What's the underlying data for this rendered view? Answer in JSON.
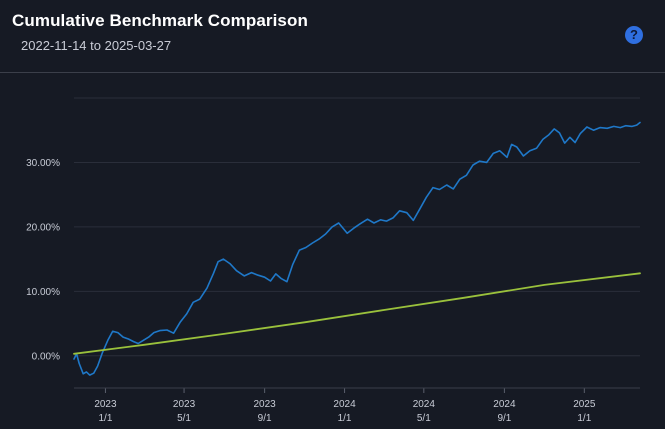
{
  "header": {
    "title": "Cumulative Benchmark Comparison",
    "subtitle": "2022-11-14 to 2025-03-27",
    "help_label": "?"
  },
  "colors": {
    "background": "#161a24",
    "grid": "#2a2e3a",
    "series_blue": "#1f78c8",
    "series_green": "#9ac13c"
  },
  "chart_data": {
    "type": "line",
    "title": "Cumulative Benchmark Comparison",
    "subtitle": "2022-11-14 to 2025-03-27",
    "xlabel": "",
    "ylabel": "",
    "x_range": [
      "2022-11-14",
      "2025-03-27"
    ],
    "ylim": [
      -5,
      40
    ],
    "y_ticks": [
      0,
      10,
      20,
      30
    ],
    "y_tick_labels": [
      "0.00%",
      "10.00%",
      "20.00%",
      "30.00%"
    ],
    "x_ticks": [
      {
        "date": "2023-01-01",
        "line1": "2023",
        "line2": "1/1"
      },
      {
        "date": "2023-05-01",
        "line1": "2023",
        "line2": "5/1"
      },
      {
        "date": "2023-09-01",
        "line1": "2023",
        "line2": "9/1"
      },
      {
        "date": "2024-01-01",
        "line1": "2024",
        "line2": "1/1"
      },
      {
        "date": "2024-05-01",
        "line1": "2024",
        "line2": "5/1"
      },
      {
        "date": "2024-09-01",
        "line1": "2024",
        "line2": "9/1"
      },
      {
        "date": "2025-01-01",
        "line1": "2025",
        "line2": "1/1"
      }
    ],
    "grid": true,
    "legend": "none",
    "series": [
      {
        "color": "#1f78c8",
        "points": [
          [
            "2022-11-14",
            -0.5
          ],
          [
            "2022-11-18",
            0.3
          ],
          [
            "2022-11-22",
            -1.2
          ],
          [
            "2022-11-28",
            -2.8
          ],
          [
            "2022-12-03",
            -2.5
          ],
          [
            "2022-12-08",
            -3.0
          ],
          [
            "2022-12-14",
            -2.7
          ],
          [
            "2022-12-20",
            -1.6
          ],
          [
            "2022-12-27",
            0.4
          ],
          [
            "2023-01-05",
            2.5
          ],
          [
            "2023-01-12",
            3.8
          ],
          [
            "2023-01-20",
            3.6
          ],
          [
            "2023-01-28",
            2.9
          ],
          [
            "2023-02-05",
            2.6
          ],
          [
            "2023-02-13",
            2.2
          ],
          [
            "2023-02-20",
            1.9
          ],
          [
            "2023-02-28",
            2.4
          ],
          [
            "2023-03-08",
            2.9
          ],
          [
            "2023-03-16",
            3.6
          ],
          [
            "2023-03-25",
            3.9
          ],
          [
            "2023-04-05",
            4.0
          ],
          [
            "2023-04-15",
            3.5
          ],
          [
            "2023-04-25",
            5.2
          ],
          [
            "2023-05-05",
            6.5
          ],
          [
            "2023-05-15",
            8.3
          ],
          [
            "2023-05-25",
            8.8
          ],
          [
            "2023-06-05",
            10.5
          ],
          [
            "2023-06-15",
            12.8
          ],
          [
            "2023-06-22",
            14.6
          ],
          [
            "2023-06-30",
            15.0
          ],
          [
            "2023-07-10",
            14.3
          ],
          [
            "2023-07-20",
            13.2
          ],
          [
            "2023-08-01",
            12.4
          ],
          [
            "2023-08-12",
            12.9
          ],
          [
            "2023-08-22",
            12.5
          ],
          [
            "2023-09-01",
            12.2
          ],
          [
            "2023-09-10",
            11.6
          ],
          [
            "2023-09-18",
            12.7
          ],
          [
            "2023-09-26",
            12.0
          ],
          [
            "2023-10-05",
            11.5
          ],
          [
            "2023-10-14",
            14.2
          ],
          [
            "2023-10-24",
            16.4
          ],
          [
            "2023-11-03",
            16.8
          ],
          [
            "2023-11-13",
            17.5
          ],
          [
            "2023-11-23",
            18.1
          ],
          [
            "2023-12-03",
            18.9
          ],
          [
            "2023-12-13",
            20.0
          ],
          [
            "2023-12-23",
            20.6
          ],
          [
            "2024-01-05",
            19.0
          ],
          [
            "2024-01-15",
            19.8
          ],
          [
            "2024-01-25",
            20.5
          ],
          [
            "2024-02-05",
            21.2
          ],
          [
            "2024-02-15",
            20.6
          ],
          [
            "2024-02-25",
            21.1
          ],
          [
            "2024-03-05",
            20.9
          ],
          [
            "2024-03-15",
            21.4
          ],
          [
            "2024-03-25",
            22.5
          ],
          [
            "2024-04-05",
            22.2
          ],
          [
            "2024-04-15",
            21.0
          ],
          [
            "2024-04-25",
            22.8
          ],
          [
            "2024-05-05",
            24.6
          ],
          [
            "2024-05-15",
            26.1
          ],
          [
            "2024-05-25",
            25.8
          ],
          [
            "2024-06-05",
            26.5
          ],
          [
            "2024-06-15",
            25.9
          ],
          [
            "2024-06-25",
            27.4
          ],
          [
            "2024-07-05",
            28.0
          ],
          [
            "2024-07-15",
            29.6
          ],
          [
            "2024-07-25",
            30.2
          ],
          [
            "2024-08-05",
            30.0
          ],
          [
            "2024-08-15",
            31.4
          ],
          [
            "2024-08-25",
            31.8
          ],
          [
            "2024-09-05",
            30.8
          ],
          [
            "2024-09-12",
            32.8
          ],
          [
            "2024-09-20",
            32.4
          ],
          [
            "2024-09-30",
            31.0
          ],
          [
            "2024-10-10",
            31.8
          ],
          [
            "2024-10-20",
            32.2
          ],
          [
            "2024-10-30",
            33.6
          ],
          [
            "2024-11-08",
            34.3
          ],
          [
            "2024-11-16",
            35.2
          ],
          [
            "2024-11-24",
            34.6
          ],
          [
            "2024-12-02",
            33.0
          ],
          [
            "2024-12-10",
            33.9
          ],
          [
            "2024-12-18",
            33.1
          ],
          [
            "2024-12-26",
            34.5
          ],
          [
            "2025-01-05",
            35.5
          ],
          [
            "2025-01-15",
            35.0
          ],
          [
            "2025-01-25",
            35.4
          ],
          [
            "2025-02-05",
            35.3
          ],
          [
            "2025-02-15",
            35.6
          ],
          [
            "2025-02-25",
            35.4
          ],
          [
            "2025-03-05",
            35.7
          ],
          [
            "2025-03-15",
            35.6
          ],
          [
            "2025-03-22",
            35.8
          ],
          [
            "2025-03-27",
            36.2
          ]
        ]
      },
      {
        "color": "#9ac13c",
        "points": [
          [
            "2022-11-14",
            0.3
          ],
          [
            "2023-03-01",
            1.7
          ],
          [
            "2023-07-01",
            3.4
          ],
          [
            "2023-11-01",
            5.2
          ],
          [
            "2024-03-01",
            7.1
          ],
          [
            "2024-07-01",
            9.0
          ],
          [
            "2024-11-01",
            11.0
          ],
          [
            "2025-03-27",
            12.8
          ]
        ]
      }
    ]
  }
}
